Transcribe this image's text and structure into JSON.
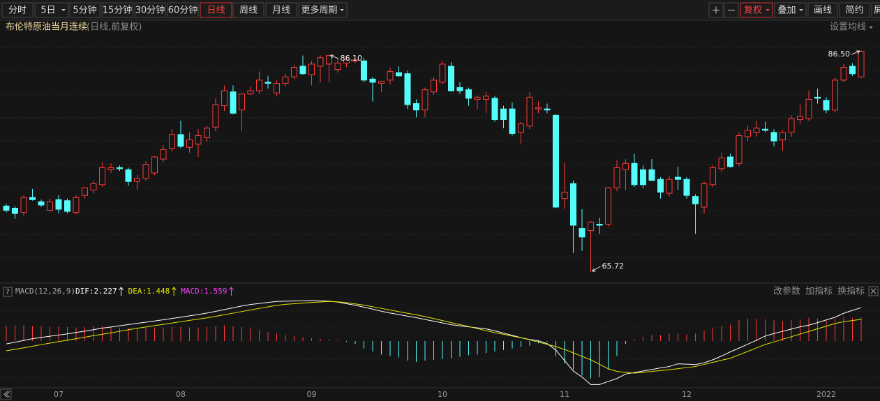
{
  "toolbar": {
    "periods": [
      "分时",
      "5日",
      "5分钟",
      "15分钟",
      "30分钟",
      "60分钟",
      "日线",
      "周线",
      "月线",
      "更多周期"
    ],
    "active_period": 6,
    "tools": [
      "复权",
      "叠加",
      "画线",
      "简约",
      "屏"
    ],
    "active_tool": 0
  },
  "header": {
    "title": "布伦特原油当月连续",
    "subtitle": "(日线,前复权)",
    "ma_button": "设置均线"
  },
  "macd_buttons": [
    "改参数",
    "加指标",
    "换指标"
  ],
  "chart_data": [
    {
      "type": "candlestick",
      "categories": [
        null,
        null,
        null,
        null,
        null,
        null,
        "07",
        null,
        null,
        null,
        null,
        null,
        null,
        null,
        null,
        null,
        null,
        null,
        null,
        null,
        "08",
        null,
        null,
        null,
        null,
        null,
        null,
        null,
        null,
        null,
        null,
        null,
        null,
        null,
        null,
        "09",
        null,
        null,
        null,
        null,
        null,
        null,
        null,
        null,
        null,
        null,
        null,
        null,
        null,
        null,
        "10",
        null,
        null,
        null,
        null,
        null,
        null,
        null,
        null,
        null,
        null,
        null,
        null,
        null,
        "11",
        null,
        null,
        null,
        null,
        null,
        null,
        null,
        null,
        null,
        null,
        null,
        null,
        null,
        "12",
        null,
        null,
        null,
        null,
        null,
        null,
        null,
        null,
        null,
        null,
        null,
        null,
        null,
        null,
        null,
        "2022",
        null,
        null,
        null,
        null
      ],
      "open": [
        71.9,
        71.7,
        71.3,
        72.7,
        72.3,
        71.5,
        72.5,
        72.4,
        71.3,
        72.9,
        73.4,
        73.9,
        75.3,
        75.5,
        75.3,
        74.2,
        74.5,
        75.0,
        76.3,
        77.3,
        78.6,
        77.4,
        77.7,
        78.3,
        79.3,
        81.3,
        82.6,
        80.9,
        82.4,
        82.7,
        83.5,
        82.5,
        83.4,
        84.0,
        85.0,
        84.2,
        85.0,
        85.2,
        84.7,
        85.3,
        85.5,
        85.5,
        83.8,
        83.4,
        83.7,
        84.4,
        84.3,
        81.5,
        80.9,
        82.6,
        83.5,
        85.0,
        83.0,
        82.8,
        81.9,
        81.9,
        82.0,
        81.0,
        81.0,
        78.8,
        79.4,
        81.0,
        81.0,
        80.4,
        72.6,
        74.0,
        69.8,
        69.6,
        70.2,
        70.2,
        73.6,
        75.3,
        75.9,
        75.3,
        75.3,
        74.4,
        73.1,
        74.6,
        74.4,
        72.8,
        71.8,
        73.9,
        75.4,
        76.5,
        75.9,
        78.4,
        78.8,
        79.1,
        78.8,
        78.1,
        78.8,
        80.0,
        80.1,
        82.1,
        81.8,
        80.9,
        83.7,
        85.0,
        84.0
      ],
      "high": [
        72.1,
        71.9,
        72.9,
        73.5,
        72.5,
        72.6,
        72.9,
        72.6,
        72.9,
        73.7,
        74.3,
        76.0,
        75.9,
        75.7,
        75.5,
        74.8,
        76.1,
        76.6,
        77.6,
        79.1,
        79.9,
        78.8,
        79.1,
        79.4,
        82.0,
        83.2,
        83.2,
        82.4,
        83.1,
        84.5,
        84.1,
        83.7,
        84.3,
        85.1,
        86.0,
        85.5,
        86.0,
        86.1,
        85.7,
        86.0,
        85.8,
        85.8,
        84.0,
        83.6,
        84.9,
        85.0,
        84.6,
        81.9,
        83.0,
        84.0,
        85.5,
        85.4,
        83.5,
        83.0,
        82.3,
        82.6,
        82.2,
        81.3,
        81.6,
        79.8,
        82.6,
        81.7,
        81.5,
        80.5,
        76.0,
        74.3,
        71.6,
        70.5,
        70.8,
        73.7,
        76.2,
        76.3,
        76.8,
        75.7,
        76.3,
        74.6,
        74.7,
        75.6,
        74.6,
        73.0,
        74.2,
        75.7,
        76.9,
        76.8,
        78.8,
        79.4,
        79.9,
        79.8,
        79.1,
        79.0,
        80.4,
        81.4,
        82.7,
        82.9,
        82.1,
        83.9,
        85.2,
        85.3,
        86.5
      ],
      "low": [
        71.3,
        70.7,
        71.0,
        72.4,
        71.8,
        71.4,
        71.2,
        71.2,
        71.1,
        72.6,
        73.1,
        73.7,
        75.0,
        75.2,
        73.8,
        73.4,
        74.3,
        74.8,
        76.0,
        77.0,
        77.3,
        76.9,
        76.5,
        77.9,
        78.9,
        80.8,
        80.5,
        78.9,
        82.3,
        82.4,
        82.9,
        82.2,
        83.1,
        83.8,
        84.2,
        83.2,
        83.5,
        83.5,
        84.4,
        84.9,
        85.3,
        83.5,
        81.7,
        82.6,
        83.3,
        84.0,
        81.0,
        80.2,
        80.2,
        82.3,
        83.3,
        82.6,
        82.4,
        81.3,
        81.0,
        80.6,
        79.8,
        79.2,
        78.5,
        77.7,
        79.1,
        80.6,
        80.6,
        71.7,
        71.6,
        67.5,
        67.7,
        65.72,
        69.3,
        70.0,
        73.3,
        73.4,
        73.7,
        73.6,
        74.3,
        72.6,
        72.8,
        73.4,
        72.6,
        69.3,
        71.2,
        73.7,
        75.1,
        75.5,
        75.6,
        78.0,
        78.4,
        78.8,
        77.5,
        77.1,
        78.4,
        79.6,
        79.9,
        81.5,
        80.6,
        80.7,
        83.5,
        84.1,
        83.9
      ],
      "close": [
        71.5,
        71.2,
        72.7,
        72.5,
        72.0,
        72.3,
        71.6,
        71.4,
        72.7,
        73.6,
        74.0,
        75.5,
        75.5,
        75.4,
        74.2,
        74.5,
        75.8,
        76.5,
        77.2,
        78.6,
        77.5,
        78.1,
        78.5,
        79.2,
        81.4,
        82.7,
        80.6,
        82.4,
        82.7,
        83.7,
        83.4,
        83.4,
        84.0,
        84.9,
        84.3,
        85.2,
        85.8,
        86.0,
        85.3,
        85.6,
        85.6,
        83.7,
        83.5,
        83.6,
        84.5,
        84.1,
        81.4,
        80.9,
        82.8,
        83.7,
        85.2,
        82.7,
        82.7,
        82.0,
        82.1,
        82.2,
        80.0,
        80.0,
        78.7,
        79.6,
        82.1,
        81.1,
        80.9,
        71.8,
        73.2,
        70.1,
        69.0,
        70.4,
        70.1,
        73.6,
        75.5,
        75.9,
        73.9,
        73.9,
        74.3,
        73.2,
        74.4,
        74.4,
        72.9,
        72.1,
        74.0,
        75.5,
        76.4,
        75.6,
        78.5,
        79.0,
        79.2,
        79.0,
        78.0,
        78.8,
        80.1,
        80.3,
        81.9,
        82.0,
        80.9,
        83.7,
        84.9,
        84.3,
        86.4
      ],
      "up_color": "#ff3b3b",
      "down_color": "#54fcfc",
      "ylim": [
        64.74,
        87.94
      ],
      "annotations": [
        {
          "index": 37,
          "field": "high",
          "label": "86.10"
        },
        {
          "index": 67,
          "field": "low",
          "label": "65.72"
        },
        {
          "index": 98,
          "field": "high",
          "label": "86.50"
        }
      ]
    },
    {
      "type": "macd",
      "name": "MACD(12,26,9)",
      "series": [
        {
          "name": "DIF:2.227",
          "color": "#ffffff",
          "values": [
            -0.19,
            -0.08,
            0.04,
            0.16,
            0.24,
            0.32,
            0.4,
            0.48,
            0.57,
            0.66,
            0.76,
            0.86,
            0.94,
            1.02,
            1.1,
            1.18,
            1.26,
            1.34,
            1.42,
            1.51,
            1.59,
            1.68,
            1.77,
            1.87,
            1.98,
            2.1,
            2.22,
            2.34,
            2.44,
            2.51,
            2.58,
            2.64,
            2.66,
            2.67,
            2.69,
            2.7,
            2.68,
            2.66,
            2.6,
            2.49,
            2.39,
            2.26,
            2.13,
            1.99,
            1.87,
            1.77,
            1.66,
            1.56,
            1.44,
            1.33,
            1.21,
            1.09,
            1.02,
            0.95,
            0.88,
            0.81,
            0.68,
            0.53,
            0.38,
            0.23,
            0.1,
            0.02,
            -0.17,
            -0.6,
            -1.3,
            -2.0,
            -2.4,
            -2.9,
            -2.9,
            -2.7,
            -2.5,
            -2.2,
            -2.1,
            -2.0,
            -1.9,
            -1.79,
            -1.7,
            -1.52,
            -1.54,
            -1.57,
            -1.45,
            -1.25,
            -1.0,
            -0.72,
            -0.47,
            -0.21,
            0.05,
            0.33,
            0.5,
            0.65,
            0.8,
            0.95,
            1.06,
            1.23,
            1.41,
            1.59,
            1.85,
            2.05,
            2.227
          ]
        },
        {
          "name": "DEA:1.448",
          "color": "#e6e600",
          "values": [
            -0.65,
            -0.55,
            -0.45,
            -0.35,
            -0.24,
            -0.14,
            -0.04,
            0.06,
            0.16,
            0.26,
            0.36,
            0.45,
            0.55,
            0.65,
            0.75,
            0.85,
            0.94,
            1.03,
            1.11,
            1.2,
            1.29,
            1.38,
            1.46,
            1.55,
            1.65,
            1.76,
            1.86,
            1.97,
            2.07,
            2.18,
            2.28,
            2.38,
            2.45,
            2.49,
            2.53,
            2.57,
            2.61,
            2.64,
            2.62,
            2.56,
            2.48,
            2.4,
            2.29,
            2.18,
            2.07,
            1.96,
            1.85,
            1.75,
            1.63,
            1.5,
            1.37,
            1.23,
            1.1,
            0.97,
            0.83,
            0.69,
            0.56,
            0.45,
            0.33,
            0.22,
            0.08,
            -0.07,
            -0.22,
            -0.37,
            -0.56,
            -0.79,
            -1.02,
            -1.25,
            -1.55,
            -1.85,
            -2.03,
            -2.09,
            -2.14,
            -2.09,
            -2.03,
            -1.97,
            -1.91,
            -1.84,
            -1.77,
            -1.7,
            -1.56,
            -1.42,
            -1.28,
            -1.15,
            -0.92,
            -0.69,
            -0.46,
            -0.23,
            -0.06,
            0.12,
            0.29,
            0.47,
            0.64,
            0.82,
            0.99,
            1.17,
            1.29,
            1.37,
            1.448
          ]
        },
        {
          "name": "MACD:1.559",
          "color": "#ff40ff",
          "style": "bar",
          "up_color": "#ff3b3b",
          "down_color": "#54fcfc",
          "values": [
            1.0,
            1.05,
            1.05,
            1.0,
            1.0,
            0.95,
            0.95,
            0.95,
            0.9,
            0.95,
            1.0,
            1.0,
            0.95,
            0.9,
            0.85,
            0.85,
            0.85,
            0.9,
            0.9,
            0.95,
            0.95,
            0.9,
            0.9,
            0.95,
            1.0,
            1.05,
            1.0,
            0.95,
            0.85,
            0.75,
            0.6,
            0.5,
            0.4,
            0.35,
            0.25,
            0.2,
            0.15,
            0.1,
            0.05,
            -0.05,
            -0.2,
            -0.5,
            -0.7,
            -0.9,
            -1.0,
            -1.1,
            -1.3,
            -1.4,
            -1.3,
            -1.25,
            -1.2,
            -1.15,
            -1.05,
            -0.95,
            -0.9,
            -0.8,
            -0.7,
            -0.6,
            -0.5,
            -0.4,
            -0.3,
            -0.15,
            -0.05,
            -1.0,
            -1.5,
            -1.9,
            -2.3,
            -2.5,
            -2.4,
            -1.9,
            -1.0,
            -0.2,
            0.1,
            0.3,
            0.4,
            0.4,
            0.5,
            0.5,
            0.45,
            0.5,
            0.7,
            0.9,
            1.0,
            1.1,
            1.4,
            1.5,
            1.5,
            1.45,
            1.4,
            1.35,
            1.4,
            1.45,
            1.55,
            1.5,
            1.45,
            1.5,
            1.6,
            1.55,
            1.559
          ]
        }
      ],
      "ylim": [
        -3.07,
        2.84
      ]
    }
  ]
}
